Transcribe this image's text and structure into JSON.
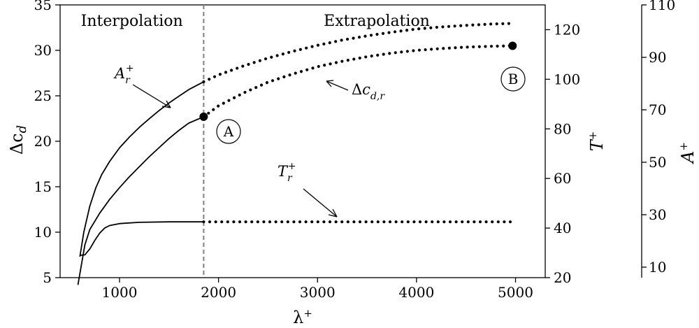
{
  "chart_data": {
    "type": "line",
    "xlabel": "λ+",
    "x_range": [
      400,
      5300
    ],
    "x_ticks": [
      1000,
      2000,
      3000,
      4000,
      5000
    ],
    "axes": {
      "left": {
        "label": "Δc_d",
        "range": [
          5,
          35
        ],
        "ticks": [
          5,
          10,
          15,
          20,
          25,
          30,
          35
        ]
      },
      "right1": {
        "label": "T+",
        "range": [
          20,
          130
        ],
        "ticks": [
          20,
          40,
          60,
          80,
          100,
          120
        ]
      },
      "right2": {
        "label": "A+",
        "range": [
          6,
          110
        ],
        "ticks": [
          10,
          30,
          50,
          70,
          90,
          110
        ]
      }
    },
    "regions": [
      {
        "label": "Interpolation",
        "x_min": 400,
        "x_max": 1850
      },
      {
        "label": "Extrapolation",
        "x_min": 1850,
        "x_max": 5300
      }
    ],
    "divider_x": 1850,
    "series": [
      {
        "name": "A_r^+",
        "axis": "right2",
        "style": "solid",
        "x": [
          600,
          640,
          700,
          760,
          820,
          900,
          1000,
          1100,
          1200,
          1300,
          1400,
          1500,
          1600,
          1700,
          1850
        ],
        "y": [
          14,
          23.5,
          33.3,
          40.2,
          45.3,
          50.3,
          55.5,
          59.6,
          63.3,
          66.6,
          69.7,
          72.6,
          75.2,
          77.7,
          80.7
        ]
      },
      {
        "name": "A_r^+",
        "axis": "right2",
        "style": "dotted",
        "x": [
          1850,
          2000,
          2250,
          2500,
          2750,
          3000,
          3250,
          3500,
          3750,
          4000,
          4250,
          4500,
          4750,
          4950
        ],
        "y": [
          80.7,
          83.3,
          86.7,
          89.7,
          92.3,
          94.6,
          96.6,
          98.2,
          99.6,
          100.8,
          101.6,
          102.2,
          102.7,
          102.9
        ]
      },
      {
        "name": "Δc_{d,r}",
        "axis": "left",
        "style": "solid",
        "x": [
          580,
          650,
          700,
          800,
          900,
          1000,
          1100,
          1200,
          1300,
          1400,
          1500,
          1600,
          1700,
          1850
        ],
        "y": [
          4.2,
          8.6,
          10.3,
          12.1,
          13.6,
          14.9,
          16.1,
          17.2,
          18.3,
          19.3,
          20.3,
          21.2,
          22.0,
          22.7
        ]
      },
      {
        "name": "Δc_{d,r}",
        "axis": "left",
        "style": "dotted",
        "x": [
          1850,
          2000,
          2250,
          2500,
          2750,
          3000,
          3250,
          3500,
          3750,
          4000,
          4250,
          4500,
          4750,
          4950
        ],
        "y": [
          22.7,
          23.9,
          25.3,
          26.5,
          27.4,
          28.2,
          28.8,
          29.3,
          29.7,
          30.0,
          30.2,
          30.35,
          30.45,
          30.5
        ]
      },
      {
        "name": "T_r^+",
        "axis": "right1",
        "style": "solid",
        "x": [
          600,
          650,
          700,
          750,
          800,
          850,
          900,
          1000,
          1200,
          1500,
          1850
        ],
        "y": [
          29,
          29.2,
          31.6,
          35,
          38,
          40,
          41,
          41.8,
          42.3,
          42.5,
          42.5
        ]
      },
      {
        "name": "T_r^+",
        "axis": "right1",
        "style": "dotted",
        "x": [
          1850,
          2500,
          3000,
          3500,
          4000,
          4500,
          4950
        ],
        "y": [
          42.5,
          42.5,
          42.5,
          42.5,
          42.5,
          42.5,
          42.5
        ]
      }
    ],
    "markers": [
      {
        "label": "A",
        "x": 1850,
        "y": 22.7,
        "axis": "left"
      },
      {
        "label": "B",
        "x": 4970,
        "y": 30.5,
        "axis": "left"
      }
    ],
    "annotations": [
      {
        "text": "A_r^+",
        "target": "A_r^+"
      },
      {
        "text": "Δc_{d,r}",
        "target": "Δc_{d,r}"
      },
      {
        "text": "T_r^+",
        "target": "T_r^+"
      }
    ],
    "grid": false,
    "legend": "none"
  }
}
